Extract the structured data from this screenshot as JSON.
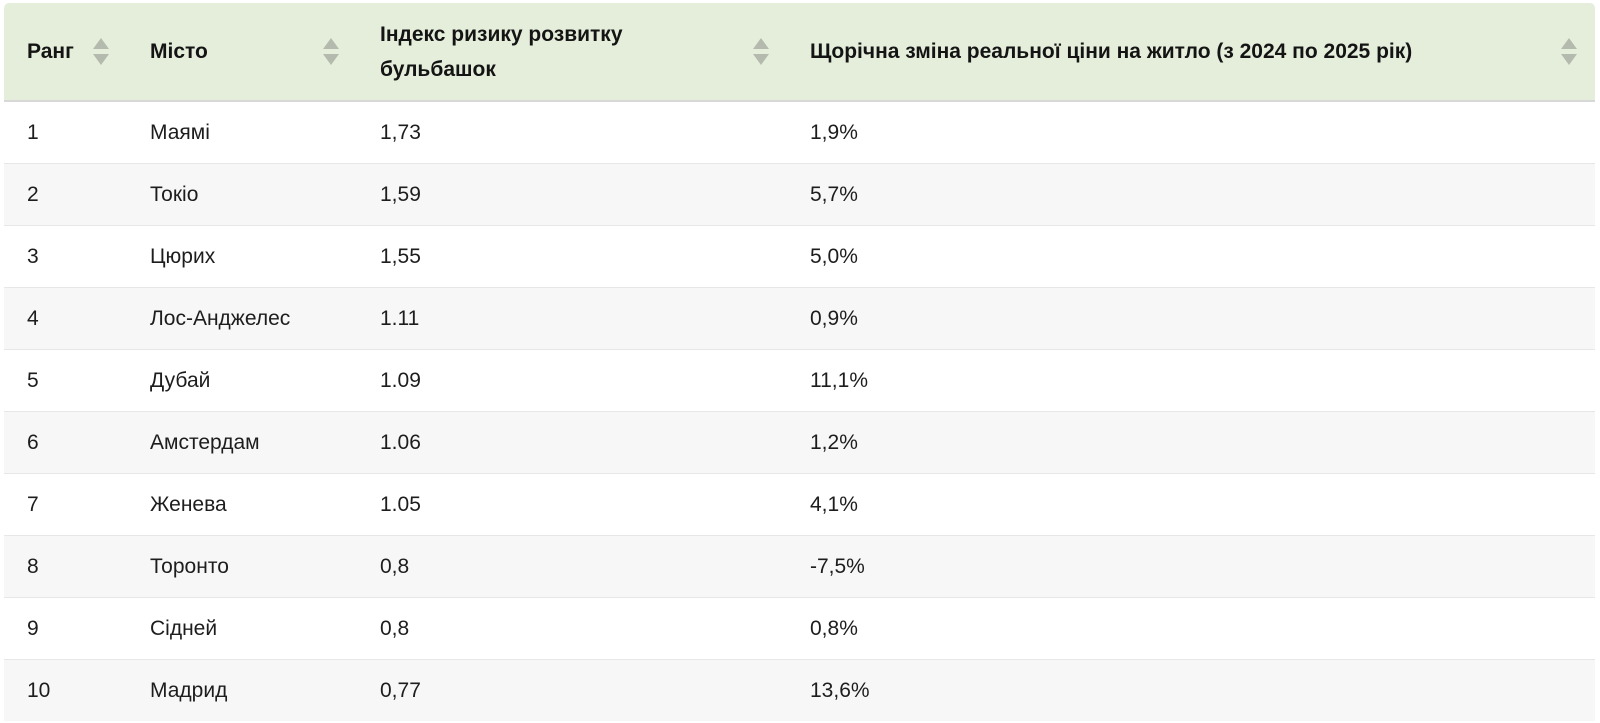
{
  "header": {
    "columns": [
      {
        "id": "rank",
        "label": "Ранг"
      },
      {
        "id": "city",
        "label": "Місто"
      },
      {
        "id": "index",
        "label": "Індекс ризику розвитку бульбашок"
      },
      {
        "id": "change",
        "label": "Щорічна зміна реальної ціни на житло (з 2024 по 2025 рік)"
      }
    ],
    "sort_icon": "sort-arrows-up-down"
  },
  "rows": [
    {
      "rank": "1",
      "city": "Маямі",
      "index": "1,73",
      "change": "1,9%"
    },
    {
      "rank": "2",
      "city": "Токіо",
      "index": "1,59",
      "change": "5,7%"
    },
    {
      "rank": "3",
      "city": "Цюрих",
      "index": "1,55",
      "change": "5,0%"
    },
    {
      "rank": "4",
      "city": "Лос-Анджелес",
      "index": "1.11",
      "change": "0,9%"
    },
    {
      "rank": "5",
      "city": "Дубай",
      "index": "1.09",
      "change": "11,1%"
    },
    {
      "rank": "6",
      "city": "Амстердам",
      "index": "1.06",
      "change": "1,2%"
    },
    {
      "rank": "7",
      "city": "Женева",
      "index": "1.05",
      "change": "4,1%"
    },
    {
      "rank": "8",
      "city": "Торонто",
      "index": "0,8",
      "change": "-7,5%"
    },
    {
      "rank": "9",
      "city": "Сідней",
      "index": "0,8",
      "change": "0,8%"
    },
    {
      "rank": "10",
      "city": "Мадрид",
      "index": "0,77",
      "change": "13,6%"
    }
  ],
  "colors": {
    "header_bg": "#e5eedb",
    "row_bg": "#ffffff",
    "row_alt_bg": "#f7f7f7",
    "row_border": "#e7e7e7",
    "header_border": "#d8d8d8",
    "sort_arrow": "#b5baae",
    "header_text": "#141414",
    "body_text": "#1d1d1d"
  }
}
